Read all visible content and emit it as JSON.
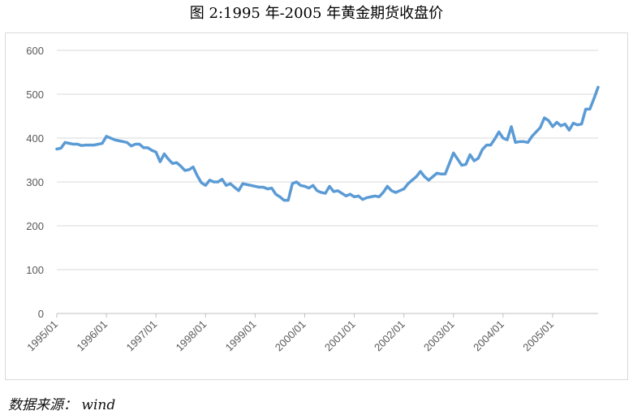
{
  "title": "图 2:1995 年-2005 年黄金期货收盘价",
  "source": {
    "label": "数据来源：",
    "value": "wind"
  },
  "chart_data": {
    "type": "line",
    "title": "图 2:1995 年-2005 年黄金期货收盘价",
    "xlabel": "",
    "ylabel": "",
    "ylim": [
      0,
      600
    ],
    "y_ticks": [
      0,
      100,
      200,
      300,
      400,
      500,
      600
    ],
    "x_tick_labels": [
      "1995/01",
      "1996/01",
      "1997/01",
      "1998/01",
      "1999/01",
      "2000/01",
      "2001/01",
      "2002/01",
      "2003/01",
      "2004/01",
      "2005/01"
    ],
    "grid": true,
    "legend": "none",
    "color": "#5b9bd5",
    "series": [
      {
        "values": [
          375,
          377,
          390,
          388,
          386,
          386,
          383,
          384,
          384,
          384,
          386,
          388,
          404,
          400,
          396,
          394,
          392,
          390,
          382,
          386,
          386,
          378,
          378,
          372,
          368,
          346,
          364,
          352,
          342,
          344,
          336,
          326,
          328,
          334,
          314,
          298,
          292,
          304,
          300,
          300,
          306,
          292,
          296,
          288,
          280,
          296,
          294,
          292,
          290,
          288,
          288,
          284,
          286,
          272,
          266,
          258,
          258,
          296,
          300,
          292,
          290,
          286,
          292,
          280,
          276,
          274,
          290,
          278,
          280,
          274,
          268,
          272,
          266,
          268,
          260,
          264,
          266,
          268,
          266,
          276,
          290,
          280,
          276,
          280,
          284,
          296,
          304,
          312,
          324,
          312,
          304,
          312,
          320,
          318,
          318,
          342,
          366,
          352,
          338,
          340,
          362,
          348,
          354,
          374,
          384,
          384,
          398,
          414,
          400,
          396,
          426,
          390,
          392,
          392,
          390,
          404,
          414,
          424,
          446,
          440,
          426,
          436,
          428,
          432,
          418,
          434,
          430,
          432,
          466,
          466,
          490,
          516
        ]
      }
    ]
  }
}
